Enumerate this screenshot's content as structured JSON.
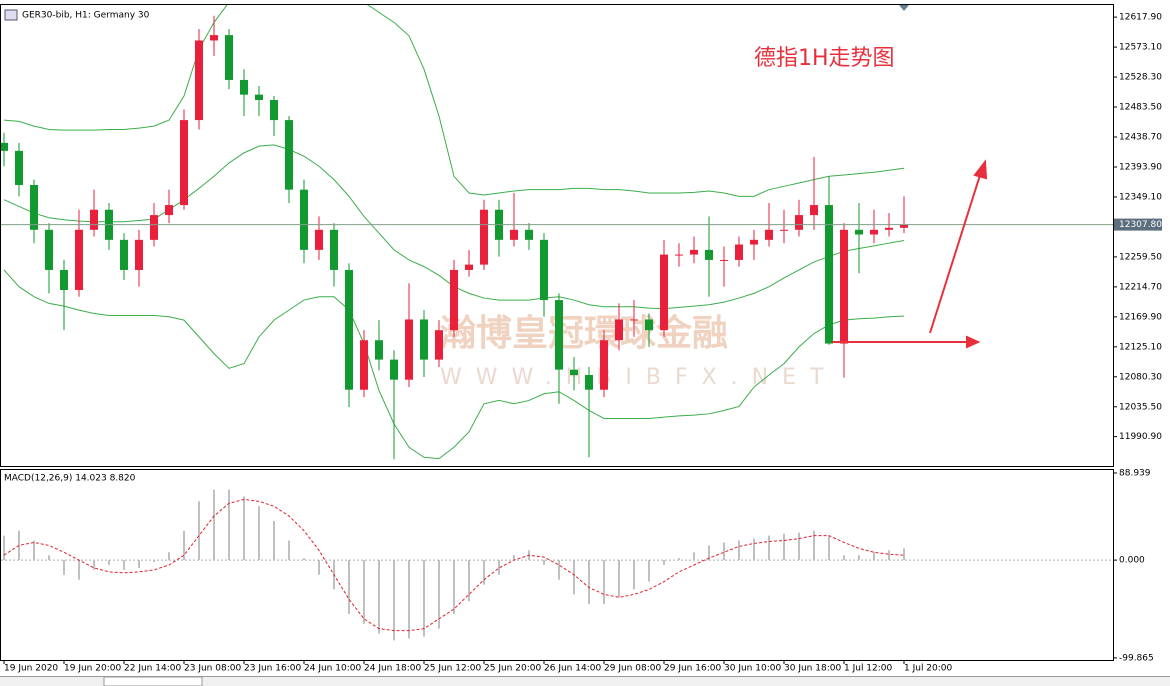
{
  "chart_data": [
    {
      "type": "candlestick",
      "title": "GER30-bib, H1:  Germany 30",
      "annotation": "德指1H走势图",
      "watermark": [
        "瀚博皇冠環球金融",
        "WWW.HBIBFX.NET"
      ],
      "categories": [
        "19 Jun 2020",
        null,
        null,
        null,
        "19 Jun 20:00",
        null,
        null,
        null,
        "22 Jun 14:00",
        null,
        null,
        null,
        "23 Jun 08:00",
        null,
        null,
        null,
        "23 Jun 16:00",
        null,
        null,
        null,
        "24 Jun 10:00",
        null,
        null,
        null,
        "24 Jun 18:00",
        null,
        null,
        null,
        "25 Jun 12:00",
        null,
        null,
        null,
        "25 Jun 20:00",
        null,
        null,
        null,
        "26 Jun 14:00",
        null,
        null,
        null,
        "29 Jun 08:00",
        null,
        null,
        null,
        "29 Jun 16:00",
        null,
        null,
        null,
        "30 Jun 10:00",
        null,
        null,
        null,
        "30 Jun 18:00",
        null,
        null,
        null,
        "1 Jul 12:00",
        null,
        null,
        null,
        "1 Jul 20:00"
      ],
      "open": [
        12430,
        12418,
        12367,
        12300,
        12240,
        12210,
        12300,
        12330,
        12285,
        12240,
        12285,
        12322,
        12337,
        12464,
        12583,
        12591,
        12524,
        12502,
        12494,
        12464,
        12360,
        12270,
        12300,
        12240,
        12061,
        12135,
        12106,
        12076,
        12166,
        12106,
        12150,
        12240,
        12248,
        12330,
        12285,
        12300,
        12285,
        12195,
        12091,
        12083,
        12061,
        12135,
        12166,
        12166,
        12150,
        12263,
        12263,
        12270,
        12255,
        12255,
        12278,
        12285,
        12300,
        12300,
        12322,
        12337,
        12130,
        12300,
        12293,
        12300,
        12303
      ],
      "high": [
        12445,
        12430,
        12375,
        12310,
        12255,
        12330,
        12360,
        12340,
        12295,
        12300,
        12340,
        12360,
        12480,
        12600,
        12620,
        12600,
        12540,
        12515,
        12500,
        12470,
        12375,
        12320,
        12310,
        12250,
        12150,
        12165,
        12120,
        12220,
        12180,
        12165,
        12255,
        12270,
        12345,
        12345,
        12355,
        12310,
        12295,
        12205,
        12110,
        12095,
        12150,
        12190,
        12195,
        12175,
        12285,
        12280,
        12290,
        12320,
        12275,
        12290,
        12300,
        12340,
        12330,
        12345,
        12409,
        12380,
        12310,
        12340,
        12330,
        12325,
        12350
      ],
      "low": [
        12395,
        12350,
        12280,
        12205,
        12150,
        12200,
        12290,
        12270,
        12225,
        12215,
        12275,
        12310,
        12330,
        12450,
        12560,
        12510,
        12470,
        12470,
        12440,
        12340,
        12250,
        12255,
        12215,
        12035,
        12050,
        12090,
        11957,
        12065,
        12080,
        12095,
        12140,
        12230,
        12240,
        12260,
        12275,
        12270,
        12170,
        12040,
        12060,
        11960,
        12050,
        12120,
        12140,
        12125,
        12140,
        12245,
        12250,
        12200,
        12215,
        12245,
        12255,
        12275,
        12280,
        12290,
        12300,
        12128,
        12079,
        12235,
        12280,
        12290,
        12295
      ],
      "close": [
        12418,
        12367,
        12300,
        12240,
        12210,
        12300,
        12330,
        12285,
        12240,
        12285,
        12322,
        12337,
        12464,
        12583,
        12591,
        12524,
        12502,
        12494,
        12464,
        12360,
        12270,
        12300,
        12240,
        12061,
        12135,
        12106,
        12076,
        12166,
        12106,
        12150,
        12240,
        12248,
        12330,
        12285,
        12300,
        12285,
        12195,
        12091,
        12083,
        12061,
        12135,
        12166,
        12166,
        12150,
        12263,
        12263,
        12270,
        12255,
        12255,
        12278,
        12285,
        12300,
        12300,
        12322,
        12337,
        12130,
        12300,
        12293,
        12300,
        12303,
        12308
      ],
      "up_color": "#e8203c",
      "down_color": "#129a30",
      "series": [
        {
          "color": "#3cae4a",
          "values": [
            12464,
            12462,
            12455,
            12450,
            12449,
            12449,
            12449,
            12450,
            12450,
            12452,
            12455,
            12464,
            12500,
            12570,
            12610,
            12640,
            12660,
            12670,
            12670,
            12670,
            12670,
            12665,
            12660,
            12650,
            12640,
            12625,
            12610,
            12590,
            12540,
            12470,
            12380,
            12355,
            12352,
            12355,
            12358,
            12360,
            12360,
            12360,
            12362,
            12362,
            12360,
            12360,
            12358,
            12355,
            12355,
            12355,
            12356,
            12358,
            12355,
            12350,
            12350,
            12360,
            12365,
            12370,
            12375,
            12380,
            12382,
            12384,
            12386,
            12389,
            12392
          ]
        },
        {
          "color": "#3cae4a",
          "values": [
            12345,
            12335,
            12325,
            12318,
            12315,
            12313,
            12312,
            12312,
            12312,
            12314,
            12316,
            12330,
            12345,
            12362,
            12380,
            12400,
            12415,
            12425,
            12427,
            12420,
            12410,
            12395,
            12375,
            12350,
            12320,
            12295,
            12270,
            12255,
            12245,
            12232,
            12215,
            12205,
            12198,
            12195,
            12195,
            12195,
            12198,
            12200,
            12195,
            12188,
            12185,
            12185,
            12185,
            12183,
            12182,
            12184,
            12186,
            12188,
            12192,
            12198,
            12205,
            12215,
            12228,
            12240,
            12252,
            12260,
            12268,
            12272,
            12276,
            12280,
            12284
          ]
        },
        {
          "color": "#3cae4a",
          "values": [
            12240,
            12215,
            12200,
            12190,
            12186,
            12180,
            12175,
            12172,
            12172,
            12172,
            12172,
            12170,
            12165,
            12140,
            12115,
            12093,
            12100,
            12140,
            12165,
            12180,
            12195,
            12200,
            12200,
            12180,
            12130,
            12060,
            12010,
            11975,
            11960,
            11958,
            11975,
            11998,
            12040,
            12045,
            12040,
            12045,
            12055,
            12058,
            12045,
            12030,
            12018,
            12018,
            12018,
            12018,
            12020,
            12022,
            12023,
            12025,
            12030,
            12036,
            12065,
            12083,
            12100,
            12125,
            12145,
            12158,
            12165,
            12167,
            12168,
            12170,
            12171
          ]
        }
      ],
      "current_price": {
        "value": 12307.8,
        "label": "12307.80"
      },
      "ylim": [
        11947,
        12636
      ],
      "yticks": [
        {
          "value": 12617.9,
          "label": "12617.90"
        },
        {
          "value": 12573.1,
          "label": "12573.10"
        },
        {
          "value": 12528.3,
          "label": "12528.30"
        },
        {
          "value": 12483.5,
          "label": "12483.50"
        },
        {
          "value": 12438.7,
          "label": "12438.70"
        },
        {
          "value": 12393.9,
          "label": "12393.90"
        },
        {
          "value": 12349.1,
          "label": "12349.10"
        },
        {
          "value": 12259.5,
          "label": "12259.50"
        },
        {
          "value": 12214.7,
          "label": "12214.70"
        },
        {
          "value": 12169.9,
          "label": "12169.90"
        },
        {
          "value": 12125.1,
          "label": "12125.10"
        },
        {
          "value": 12080.3,
          "label": "12080.30"
        },
        {
          "value": 12035.5,
          "label": "12035.50"
        },
        {
          "value": 11990.9,
          "label": "11990.90"
        }
      ]
    },
    {
      "type": "macd",
      "label": "MACD(12,26,9) 14.023 8.820",
      "histogram": {
        "color": "#c0c0c0",
        "values": [
          25,
          30,
          20,
          5,
          -15,
          -20,
          -10,
          -5,
          -10,
          -8,
          -2,
          8,
          30,
          60,
          72,
          72,
          65,
          55,
          40,
          20,
          2,
          -15,
          -30,
          -55,
          -65,
          -75,
          -82,
          -80,
          -78,
          -70,
          -55,
          -42,
          -25,
          -15,
          5,
          10,
          -5,
          -20,
          -35,
          -45,
          -45,
          -38,
          -30,
          -22,
          -5,
          2,
          8,
          15,
          18,
          20,
          22,
          25,
          27,
          28,
          30,
          25,
          5,
          5,
          8,
          10,
          12
        ]
      },
      "signal": {
        "color": "#e0202c",
        "values": [
          5,
          15,
          18,
          15,
          8,
          0,
          -8,
          -12,
          -13,
          -12,
          -10,
          -5,
          5,
          25,
          45,
          58,
          62,
          60,
          55,
          45,
          30,
          10,
          -15,
          -40,
          -60,
          -70,
          -72,
          -72,
          -70,
          -60,
          -50,
          -35,
          -20,
          -8,
          0,
          5,
          3,
          -5,
          -15,
          -28,
          -35,
          -38,
          -35,
          -30,
          -22,
          -12,
          -5,
          2,
          8,
          14,
          17,
          19,
          20,
          22,
          25,
          25,
          18,
          12,
          8,
          6,
          5
        ]
      },
      "ylim": [
        -102,
        92
      ],
      "yticks": [
        {
          "value": 88.939,
          "label": "88.939"
        },
        {
          "value": 0,
          "label": "0.000"
        },
        {
          "value": -99.865,
          "label": "-99.865"
        }
      ]
    }
  ]
}
